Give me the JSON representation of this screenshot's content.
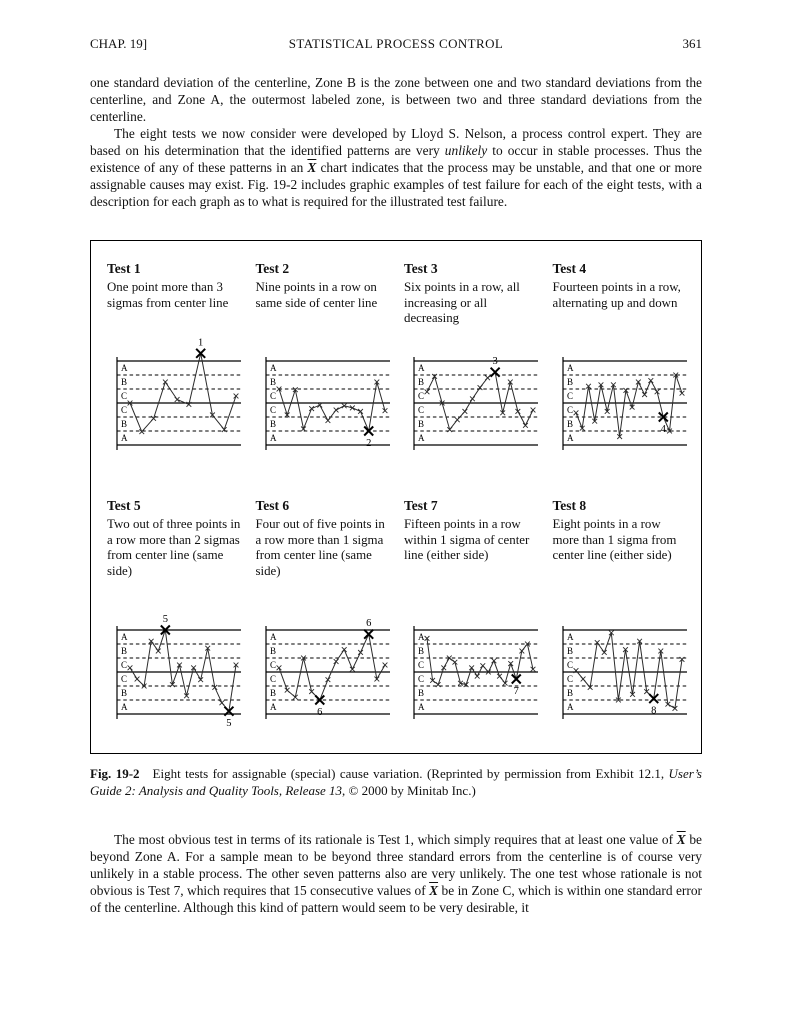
{
  "header": {
    "chapter": "CHAP. 19]",
    "title": "STATISTICAL PROCESS CONTROL",
    "page_number": "361"
  },
  "paragraphs": {
    "p1": [
      {
        "t": "one standard deviation of the centerline, Zone B is the zone between one and two standard deviations from the centerline, and Zone A, the outermost labeled zone, is between two and three standard deviations from the centerline."
      }
    ],
    "p2": [
      {
        "t": "The eight tests we now consider were developed by Lloyd S. Nelson, a process control expert. They are based on his determination that the identified patterns are very "
      },
      {
        "t": "unlikely",
        "i": true
      },
      {
        "t": " to occur in stable processes. Thus the existence of any of these patterns in an "
      },
      {
        "t": "X",
        "i": true,
        "b": true,
        "ov": true
      },
      {
        "t": " chart indicates that the process may be unstable, and that one or more assignable causes may exist. Fig. 19-2 includes graphic examples of test failure for each of the eight tests, with a description for each graph as to what is required for the illustrated test failure."
      }
    ],
    "caption": [
      {
        "t": "Fig. 19-2",
        "b": true
      },
      {
        "t": "  Eight tests for assignable (special) cause variation. (Reprinted by permission from Exhibit 12.1, "
      },
      {
        "t": "User’s Guide 2: Analysis and Quality Tools, Release 13",
        "i": true
      },
      {
        "t": ", © 2000 by Minitab Inc.)"
      }
    ],
    "p3": [
      {
        "t": "The most obvious test in terms of its rationale is Test 1, which simply requires that at least one value of "
      },
      {
        "t": "X",
        "i": true,
        "b": true,
        "ov": true
      },
      {
        "t": " be beyond Zone A. For a sample mean to be beyond three standard errors from the centerline is of course very unlikely in a stable process. The other seven patterns also are very unlikely. The one test whose rationale is not obvious is Test 7, which requires that 15 consecutive values of "
      },
      {
        "t": "X",
        "i": true,
        "b": true,
        "ov": true
      },
      {
        "t": " be in Zone C, which is within one standard error of the centerline. Although this kind of pattern would seem to be very desirable, it"
      }
    ]
  },
  "chart_data": [
    {
      "type": "line",
      "title": "Test 1",
      "description": "One point more than 3 sigmas from center line",
      "zones": [
        "A",
        "B",
        "C",
        "C",
        "B",
        "A"
      ],
      "ylim": [
        -3,
        3
      ],
      "centerline": 0,
      "values": [
        0,
        -2.05,
        -1.1,
        1.5,
        0.25,
        -0.1,
        3.55,
        -0.85,
        -1.9,
        0.5
      ],
      "marks": [
        {
          "index": 6,
          "label": "1",
          "position": "above"
        }
      ]
    },
    {
      "type": "line",
      "title": "Test 2",
      "description": "Nine points in a row on same side of center line",
      "zones": [
        "A",
        "B",
        "C",
        "C",
        "B",
        "A"
      ],
      "ylim": [
        -3,
        3
      ],
      "centerline": 0,
      "values": [
        1.0,
        -0.85,
        0.95,
        -1.85,
        -0.4,
        -0.15,
        -1.25,
        -0.5,
        -0.2,
        -0.35,
        -0.6,
        -2.0,
        1.5,
        -0.55
      ],
      "marks": [
        {
          "index": 11,
          "label": "2",
          "position": "below"
        }
      ]
    },
    {
      "type": "line",
      "title": "Test 3",
      "description": "Six points in a row, all increasing or all decreasing",
      "zones": [
        "A",
        "B",
        "C",
        "C",
        "B",
        "A"
      ],
      "ylim": [
        -3,
        3
      ],
      "centerline": 0,
      "values": [
        0.8,
        1.9,
        0.0,
        -1.9,
        -1.2,
        -0.6,
        0.3,
        1.1,
        1.8,
        2.2,
        -0.7,
        1.5,
        -0.6,
        -1.6,
        -0.5
      ],
      "marks": [
        {
          "index": 9,
          "label": "3",
          "position": "above"
        }
      ]
    },
    {
      "type": "line",
      "title": "Test 4",
      "description": "Fourteen points in a row, alternating up and down",
      "zones": [
        "A",
        "B",
        "C",
        "C",
        "B",
        "A"
      ],
      "ylim": [
        -3,
        3
      ],
      "centerline": 0,
      "values": [
        -0.7,
        -1.8,
        1.2,
        -1.3,
        1.3,
        -0.6,
        1.3,
        -2.4,
        0.9,
        -0.3,
        1.5,
        0.6,
        1.6,
        0.8,
        -1.0,
        -2.0,
        2.0,
        0.7
      ],
      "marks": [
        {
          "index": 14,
          "label": "4",
          "position": "below"
        }
      ]
    },
    {
      "type": "line",
      "title": "Test 5",
      "description": "Two out of three points in a row more than 2 sigmas from center line (same side)",
      "zones": [
        "A",
        "B",
        "C",
        "C",
        "B",
        "A"
      ],
      "ylim": [
        -3,
        3
      ],
      "centerline": 0,
      "values": [
        0.3,
        -0.5,
        -1.0,
        2.2,
        1.5,
        3.0,
        -0.9,
        0.5,
        -1.7,
        0.3,
        -0.55,
        1.7,
        -1.1,
        -2.2,
        -2.8,
        0.5
      ],
      "marks": [
        {
          "index": 5,
          "label": "5",
          "position": "above"
        },
        {
          "index": 14,
          "label": "5",
          "position": "below"
        }
      ]
    },
    {
      "type": "line",
      "title": "Test 6",
      "description": "Four out of five points in a row more than 1 sigma from center line (same side)",
      "zones": [
        "A",
        "B",
        "C",
        "C",
        "B",
        "A"
      ],
      "ylim": [
        -3,
        3
      ],
      "centerline": 0,
      "values": [
        0.3,
        -1.3,
        -1.8,
        1.0,
        -1.4,
        -2.0,
        -0.55,
        0.75,
        1.6,
        0.2,
        1.4,
        2.7,
        -0.5,
        0.5
      ],
      "marks": [
        {
          "index": 5,
          "label": "6",
          "position": "below"
        },
        {
          "index": 11,
          "label": "6",
          "position": "above"
        }
      ]
    },
    {
      "type": "line",
      "title": "Test 7",
      "description": "Fifteen points in a row within 1 sigma of center line (either side)",
      "zones": [
        "A",
        "B",
        "C",
        "C",
        "B",
        "A"
      ],
      "ylim": [
        -3,
        3
      ],
      "centerline": 0,
      "values": [
        2.4,
        -0.6,
        -0.9,
        0.3,
        1.0,
        0.7,
        -0.8,
        -0.9,
        0.3,
        -0.3,
        0.45,
        0.0,
        0.8,
        -0.3,
        -0.8,
        0.6,
        -0.5,
        1.5,
        2.0,
        0.2
      ],
      "marks": [
        {
          "index": 16,
          "label": "7",
          "position": "below"
        }
      ]
    },
    {
      "type": "line",
      "title": "Test 8",
      "description": "Eight points in a row more than 1 sigma from center line (either side)",
      "zones": [
        "A",
        "B",
        "C",
        "C",
        "B",
        "A"
      ],
      "ylim": [
        -3,
        3
      ],
      "centerline": 0,
      "values": [
        0.1,
        -0.5,
        -1.1,
        2.1,
        1.4,
        2.8,
        -2.0,
        1.6,
        -1.6,
        2.2,
        -1.4,
        -1.9,
        1.5,
        -2.3,
        -2.6,
        0.9
      ],
      "marks": [
        {
          "index": 11,
          "label": "8",
          "position": "below"
        }
      ]
    }
  ]
}
